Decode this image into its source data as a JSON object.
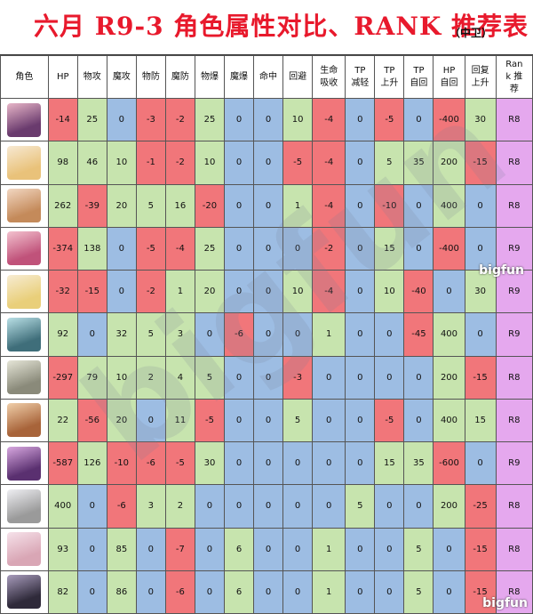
{
  "title": "六月 R9-3 角色属性对比、RANK 推荐表",
  "subtitle": "（中卫）",
  "headers": [
    "角色",
    "HP",
    "物攻",
    "魔攻",
    "物防",
    "魔防",
    "物爆",
    "魔爆",
    "命中",
    "回避",
    "生命\n吸收",
    "TP\n减轻",
    "TP\n上升",
    "TP\n自回",
    "HP\n自回",
    "回复\n上升",
    "Ran\nk 推\n荐"
  ],
  "avatar_colors": [
    [
      "#6a3b6e",
      "#e8b6c8"
    ],
    [
      "#e9c27a",
      "#f7e9d3"
    ],
    [
      "#c48a5a",
      "#f2d7c2"
    ],
    [
      "#c0527a",
      "#f3c2cf"
    ],
    [
      "#e9cf7a",
      "#f7ecd3"
    ],
    [
      "#3f6e7a",
      "#b9e0e6"
    ],
    [
      "#8a8a7a",
      "#e6e6d8"
    ],
    [
      "#a8643a",
      "#f0cfaa"
    ],
    [
      "#5a3070",
      "#d8a8e0"
    ],
    [
      "#9a9a9a",
      "#efeff3"
    ],
    [
      "#d9a6b5",
      "#f6e2ea"
    ],
    [
      "#2f2a3a",
      "#a89cbc"
    ]
  ],
  "rows": [
    {
      "values": [
        "-14",
        "25",
        "0",
        "-3",
        "-2",
        "25",
        "0",
        "0",
        "10",
        "-4",
        "0",
        "-5",
        "0",
        "-400",
        "30"
      ],
      "rank": "R8"
    },
    {
      "values": [
        "98",
        "46",
        "10",
        "-1",
        "-2",
        "10",
        "0",
        "0",
        "-5",
        "-4",
        "0",
        "5",
        "35",
        "200",
        "-15"
      ],
      "rank": "R8"
    },
    {
      "values": [
        "262",
        "-39",
        "20",
        "5",
        "16",
        "-20",
        "0",
        "0",
        "1",
        "-4",
        "0",
        "-10",
        "0",
        "400",
        "0"
      ],
      "rank": "R8"
    },
    {
      "values": [
        "-374",
        "138",
        "0",
        "-5",
        "-4",
        "25",
        "0",
        "0",
        "0",
        "-2",
        "0",
        "15",
        "0",
        "-400",
        "0"
      ],
      "rank": "R9"
    },
    {
      "values": [
        "-32",
        "-15",
        "0",
        "-2",
        "1",
        "20",
        "0",
        "0",
        "10",
        "-4",
        "0",
        "10",
        "-40",
        "0",
        "30"
      ],
      "rank": "R9"
    },
    {
      "values": [
        "92",
        "0",
        "32",
        "5",
        "3",
        "0",
        "-6",
        "0",
        "0",
        "1",
        "0",
        "0",
        "-45",
        "400",
        "0"
      ],
      "rank": "R9"
    },
    {
      "values": [
        "-297",
        "79",
        "10",
        "2",
        "4",
        "5",
        "0",
        "0",
        "-3",
        "0",
        "0",
        "0",
        "0",
        "200",
        "-15"
      ],
      "rank": "R8"
    },
    {
      "values": [
        "22",
        "-56",
        "20",
        "0",
        "11",
        "-5",
        "0",
        "0",
        "5",
        "0",
        "0",
        "-5",
        "0",
        "400",
        "15"
      ],
      "rank": "R8"
    },
    {
      "values": [
        "-587",
        "126",
        "-10",
        "-6",
        "-5",
        "30",
        "0",
        "0",
        "0",
        "0",
        "0",
        "15",
        "35",
        "-600",
        "0"
      ],
      "rank": "R9"
    },
    {
      "values": [
        "400",
        "0",
        "-6",
        "3",
        "2",
        "0",
        "0",
        "0",
        "0",
        "0",
        "5",
        "0",
        "0",
        "200",
        "-25"
      ],
      "rank": "R8"
    },
    {
      "values": [
        "93",
        "0",
        "85",
        "0",
        "-7",
        "0",
        "6",
        "0",
        "0",
        "1",
        "0",
        "0",
        "5",
        "0",
        "-15"
      ],
      "rank": "R8"
    },
    {
      "values": [
        "82",
        "0",
        "86",
        "0",
        "-6",
        "0",
        "6",
        "0",
        "0",
        "1",
        "0",
        "0",
        "5",
        "0",
        "-15"
      ],
      "rank": "R8"
    }
  ],
  "watermark": "bigfun",
  "logo_text": "bigfun",
  "colors": {
    "negative": "#f1767a",
    "positive": "#c7e4ae",
    "zero": "#9dbde3",
    "rank": "#e5a8ee"
  }
}
